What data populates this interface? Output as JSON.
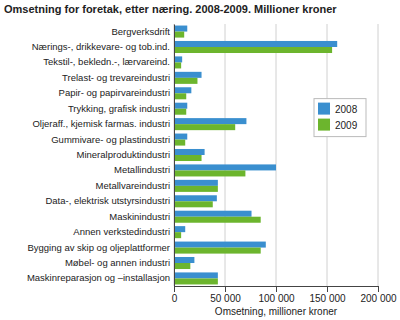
{
  "chart_data": {
    "type": "bar",
    "orientation": "horizontal",
    "title": "Omsetning for foretak, etter næring. 2008-2009. Millioner kroner",
    "x_label": "Omsetning, millioner kroner",
    "categories": [
      "Bergverksdrift",
      "Nærings-, drikkevare- og tob.ind.",
      "Tekstil-, bekledn.-, lærvareind.",
      "Trelast- og trevareindustri",
      "Papir- og papirvareindustri",
      "Trykking, grafisk industri",
      "Oljeraff., kjemisk farmas. industri",
      "Gummivare- og plastindustri",
      "Mineralproduktindustri",
      "Metallindustri",
      "Metallvareindustri",
      "Data-, elektrisk utstyrsindustri",
      "Maskinindustri",
      "Annen verkstedindustri",
      "Bygging av skip og oljeplattformer",
      "Møbel- og annen industri",
      "Maskinreparasjon og –installasjon"
    ],
    "series": [
      {
        "name": "2008",
        "color": "#3a8fcf",
        "values": [
          13000,
          160000,
          8000,
          27000,
          17000,
          13000,
          71000,
          13000,
          30000,
          100000,
          43000,
          42000,
          76000,
          11000,
          90000,
          20000,
          43000
        ]
      },
      {
        "name": "2009",
        "color": "#6cb52d",
        "values": [
          10000,
          155000,
          7000,
          23000,
          12000,
          12000,
          60000,
          11000,
          27000,
          70000,
          43000,
          38000,
          85000,
          7000,
          85000,
          16000,
          43000
        ]
      }
    ],
    "xlim": [
      0,
      200000
    ],
    "xticks": [
      0,
      {
        "value": 50000,
        "label": "50 000"
      },
      {
        "value": 100000,
        "label": "100 000"
      },
      {
        "value": 150000,
        "label": "150 000"
      },
      {
        "value": 200000,
        "label": "200 000"
      }
    ],
    "grid": true,
    "legend": "right"
  }
}
